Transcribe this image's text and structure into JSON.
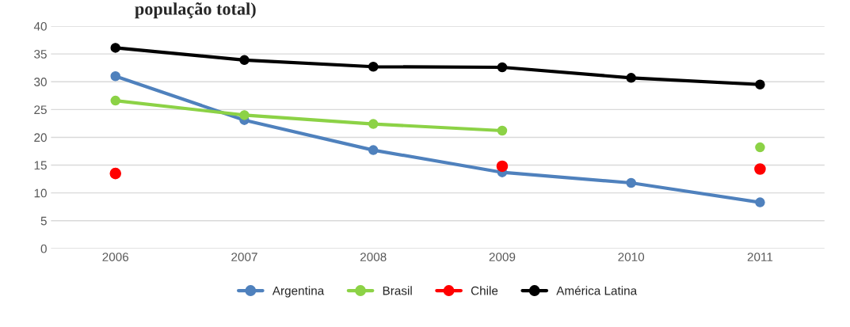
{
  "chart_data": {
    "type": "line",
    "title": "população total)",
    "categories": [
      "2006",
      "2007",
      "2008",
      "2009",
      "2010",
      "2011"
    ],
    "series": [
      {
        "name": "Argentina",
        "color": "#4f81bd",
        "values": [
          31.0,
          23.1,
          17.7,
          13.7,
          11.8,
          8.3
        ]
      },
      {
        "name": "Brasil",
        "color": "#8cd246",
        "values": [
          26.6,
          24.0,
          22.4,
          21.2,
          null,
          18.2
        ]
      },
      {
        "name": "Chile",
        "type": "scatter",
        "color": "#ff0000",
        "values": [
          13.5,
          null,
          null,
          14.8,
          null,
          14.3
        ]
      },
      {
        "name": "América Latina",
        "color": "#000000",
        "values": [
          36.1,
          33.9,
          32.7,
          32.6,
          30.7,
          29.5
        ]
      }
    ],
    "ylim": [
      0,
      40
    ],
    "yticks": [
      0,
      5,
      10,
      15,
      20,
      25,
      30,
      35,
      40
    ],
    "grid": "y",
    "legend": "bottom",
    "marker": "circle"
  }
}
